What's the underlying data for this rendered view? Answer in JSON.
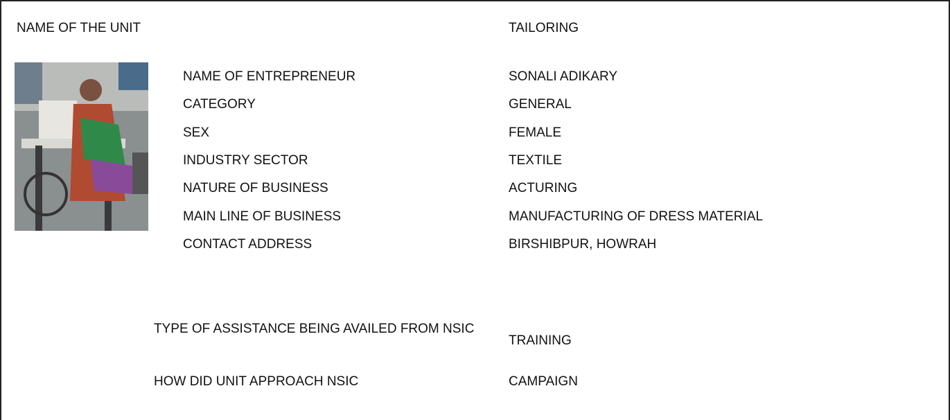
{
  "unit": {
    "label": "NAME OF THE UNIT",
    "value": "TAILORING"
  },
  "details": [
    {
      "label": "NAME OF ENTREPRENEUR",
      "value": "SONALI  ADIKARY"
    },
    {
      "label": "CATEGORY",
      "value": "GENERAL"
    },
    {
      "label": "SEX",
      "value": "FEMALE"
    },
    {
      "label": "INDUSTRY SECTOR",
      "value": "TEXTILE"
    },
    {
      "label": "NATURE OF BUSINESS",
      "value": "ACTURING"
    },
    {
      "label": "MAIN LINE OF BUSINESS",
      "value": "MANUFACTURING OF DRESS MATERIAL"
    },
    {
      "label": "CONTACT ADDRESS",
      "value": "BIRSHIBPUR, HOWRAH"
    }
  ],
  "assistance": [
    {
      "label": "TYPE OF ASSISTANCE BEING AVAILED FROM NSIC",
      "value": "TRAINING"
    },
    {
      "label": "HOW DID UNIT APPROACH NSIC",
      "value": "CAMPAIGN"
    }
  ]
}
